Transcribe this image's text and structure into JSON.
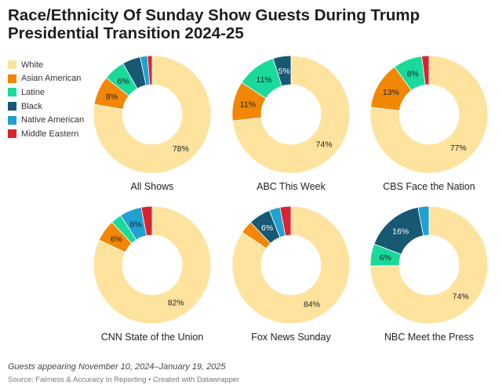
{
  "chart_data": {
    "type": "pie",
    "subtype": "donut",
    "title": "Race/Ethnicity Of Sunday Show Guests During Trump Presidential Transition 2024-25",
    "note": "Guests appearing November 10, 2024–January 19, 2025",
    "source": "Source: Fairness & Accuracy In Reporting • Created with Datawrapper",
    "legend": [
      {
        "label": "White",
        "color": "#fde39e"
      },
      {
        "label": "Asian American",
        "color": "#f28705"
      },
      {
        "label": "Latine",
        "color": "#19d99b"
      },
      {
        "label": "Black",
        "color": "#175873"
      },
      {
        "label": "Native American",
        "color": "#21a1cf"
      },
      {
        "label": "Middle Eastern",
        "color": "#d92332"
      }
    ],
    "charts": [
      {
        "name": "All Shows",
        "slices": [
          {
            "category": "White",
            "value": 78,
            "label": "78%"
          },
          {
            "category": "Asian American",
            "value": 8,
            "label": "8%"
          },
          {
            "category": "Latine",
            "value": 6,
            "label": "6%"
          },
          {
            "category": "Black",
            "value": 5,
            "label": ""
          },
          {
            "category": "Native American",
            "value": 2,
            "label": ""
          },
          {
            "category": "Middle Eastern",
            "value": 1.3,
            "label": ""
          }
        ]
      },
      {
        "name": "ABC This Week",
        "slices": [
          {
            "category": "White",
            "value": 74,
            "label": "74%"
          },
          {
            "category": "Asian American",
            "value": 11,
            "label": "11%"
          },
          {
            "category": "Latine",
            "value": 11,
            "label": "11%"
          },
          {
            "category": "Black",
            "value": 5,
            "label": "5%"
          }
        ]
      },
      {
        "name": "CBS Face the Nation",
        "slices": [
          {
            "category": "White",
            "value": 77,
            "label": "77%"
          },
          {
            "category": "Asian American",
            "value": 13,
            "label": "13%"
          },
          {
            "category": "Latine",
            "value": 8,
            "label": "8%"
          },
          {
            "category": "Middle Eastern",
            "value": 2,
            "label": ""
          }
        ]
      },
      {
        "name": "CNN State of the Union",
        "slices": [
          {
            "category": "White",
            "value": 82,
            "label": "82%"
          },
          {
            "category": "Asian American",
            "value": 6,
            "label": "6%"
          },
          {
            "category": "Latine",
            "value": 3,
            "label": ""
          },
          {
            "category": "Native American",
            "value": 6,
            "label": "6%"
          },
          {
            "category": "Middle Eastern",
            "value": 3,
            "label": ""
          }
        ]
      },
      {
        "name": "Fox News Sunday",
        "slices": [
          {
            "category": "White",
            "value": 84,
            "label": "84%"
          },
          {
            "category": "Asian American",
            "value": 3.5,
            "label": ""
          },
          {
            "category": "Black",
            "value": 6,
            "label": "6%"
          },
          {
            "category": "Native American",
            "value": 3,
            "label": ""
          },
          {
            "category": "Middle Eastern",
            "value": 3,
            "label": ""
          }
        ]
      },
      {
        "name": "NBC Meet the Press",
        "slices": [
          {
            "category": "White",
            "value": 74,
            "label": "74%"
          },
          {
            "category": "Latine",
            "value": 6,
            "label": "6%"
          },
          {
            "category": "Black",
            "value": 16,
            "label": "16%"
          },
          {
            "category": "Native American",
            "value": 3,
            "label": ""
          }
        ]
      }
    ]
  }
}
